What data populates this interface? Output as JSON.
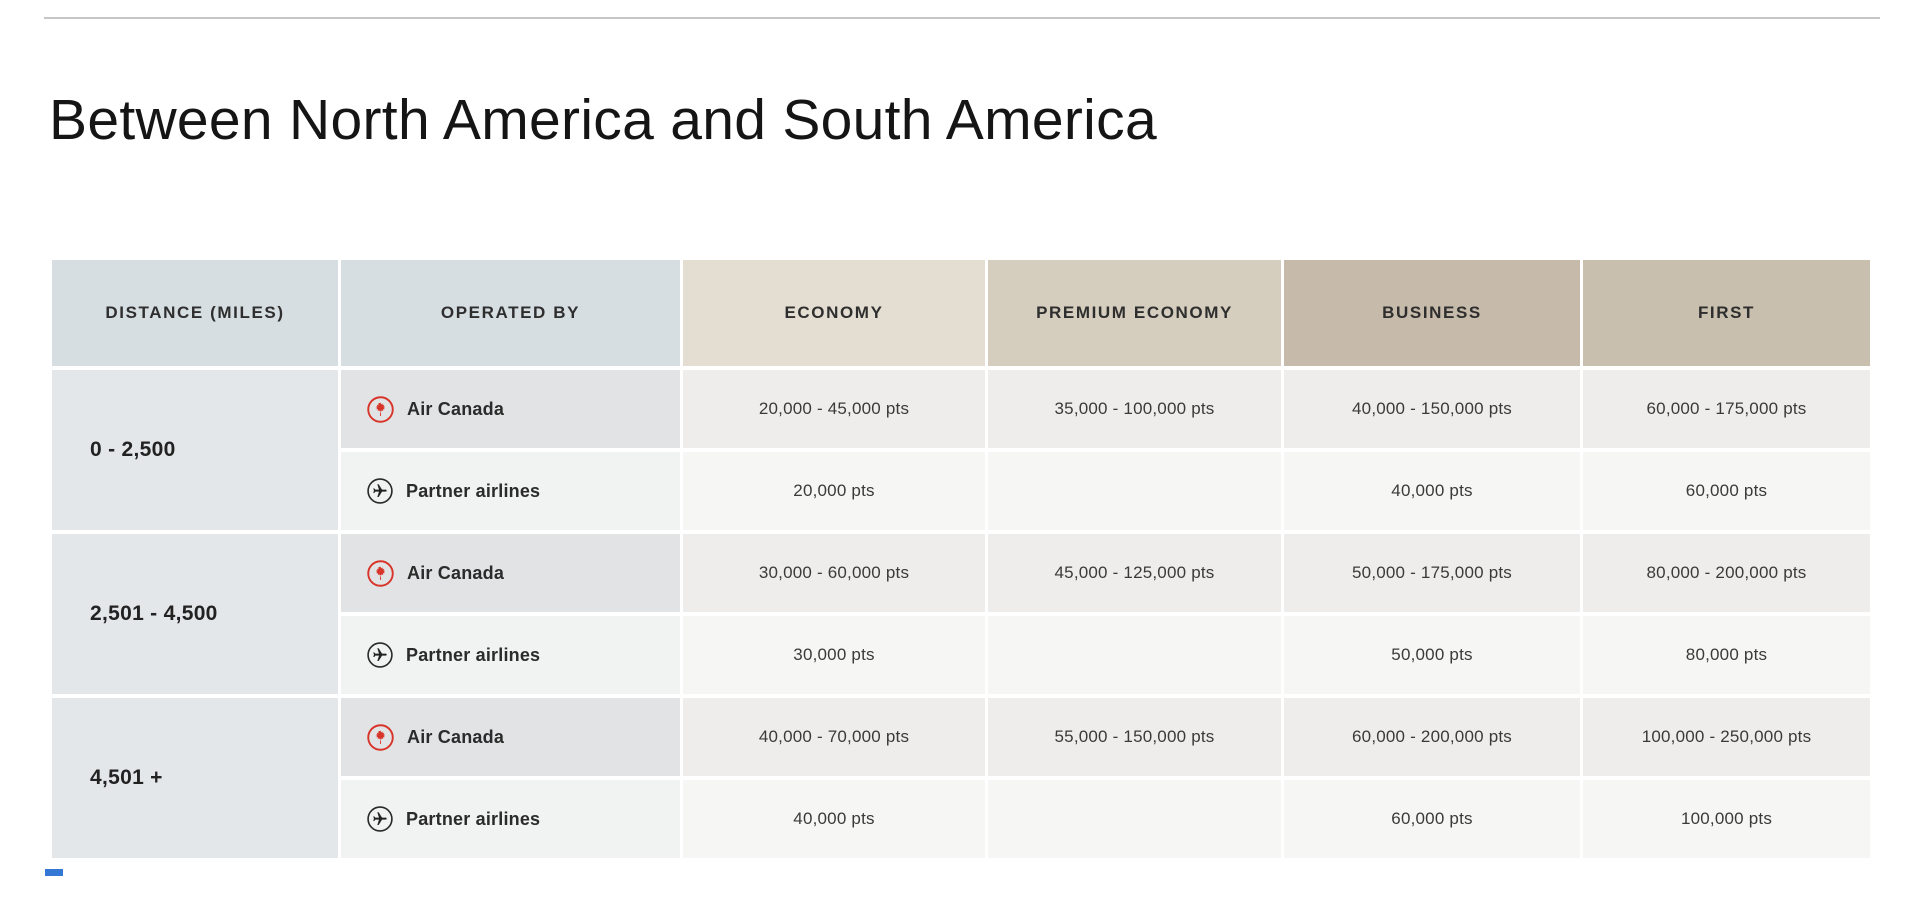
{
  "page": {
    "title": "Between North America and South America"
  },
  "table": {
    "columns": [
      "DISTANCE (MILES)",
      "OPERATED BY",
      "ECONOMY",
      "PREMIUM ECONOMY",
      "BUSINESS",
      "FIRST"
    ],
    "bands": [
      {
        "distance": "0 - 2,500",
        "rows": [
          {
            "operator": "Air Canada",
            "icon": "air-canada-logo-icon",
            "economy": "20,000 - 45,000 pts",
            "premium_economy": "35,000 - 100,000 pts",
            "business": "40,000 - 150,000 pts",
            "first": "60,000 - 175,000 pts"
          },
          {
            "operator": "Partner airlines",
            "icon": "partner-airlines-icon",
            "economy": "20,000 pts",
            "premium_economy": "",
            "business": "40,000 pts",
            "first": "60,000 pts"
          }
        ]
      },
      {
        "distance": "2,501 - 4,500",
        "rows": [
          {
            "operator": "Air Canada",
            "icon": "air-canada-logo-icon",
            "economy": "30,000 - 60,000 pts",
            "premium_economy": "45,000 - 125,000 pts",
            "business": "50,000 - 175,000 pts",
            "first": "80,000 - 200,000 pts"
          },
          {
            "operator": "Partner airlines",
            "icon": "partner-airlines-icon",
            "economy": "30,000 pts",
            "premium_economy": "",
            "business": "50,000 pts",
            "first": "80,000 pts"
          }
        ]
      },
      {
        "distance": "4,501 +",
        "rows": [
          {
            "operator": "Air Canada",
            "icon": "air-canada-logo-icon",
            "economy": "40,000 - 70,000 pts",
            "premium_economy": "55,000 - 150,000 pts",
            "business": "60,000 - 200,000 pts",
            "first": "100,000 - 250,000 pts"
          },
          {
            "operator": "Partner airlines",
            "icon": "partner-airlines-icon",
            "economy": "40,000 pts",
            "premium_economy": "",
            "business": "60,000 pts",
            "first": "100,000 pts"
          }
        ]
      }
    ]
  },
  "colors": {
    "header_gray_blue": "#d7dee1",
    "header_economy": "#e4ded2",
    "header_premium_economy": "#d5cdbe",
    "header_business": "#c6bbaa",
    "header_first": "#c8bfae",
    "distance_cell": "#e4e7e9",
    "air_canada_red": "#d8352a",
    "partner_icon_dark": "#2a2a2a",
    "accent_blue": "#3577d4"
  }
}
